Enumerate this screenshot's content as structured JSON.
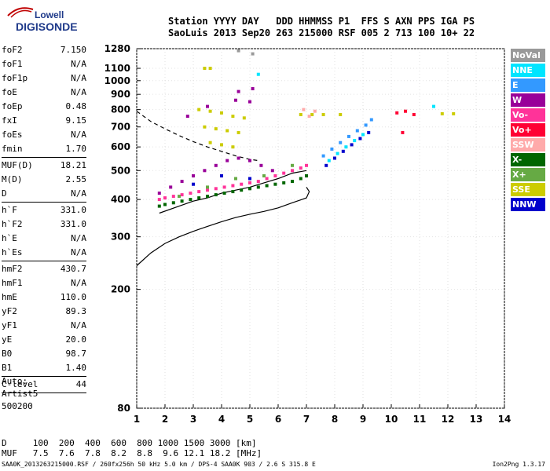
{
  "logo": {
    "line1": "Lowell",
    "line2": "DIGISONDE"
  },
  "header": {
    "line1": "Station YYYY DAY   DDD HHMMSS P1  FFS S AXN PPS IGA PS",
    "line2": "SaoLuis 2013 Sep20 263 215000 RSF 005 2 713 100 10+ 22"
  },
  "params": [
    {
      "label": "foF2",
      "value": "7.150"
    },
    {
      "label": "foF1",
      "value": "N/A"
    },
    {
      "label": "foF1p",
      "value": "N/A"
    },
    {
      "label": "foE",
      "value": "N/A"
    },
    {
      "label": "foEp",
      "value": "0.48"
    },
    {
      "label": "fxI",
      "value": "9.15"
    },
    {
      "label": "foEs",
      "value": "N/A"
    },
    {
      "label": "fmin",
      "value": "1.70"
    },
    {
      "sep": true
    },
    {
      "label": "MUF(D)",
      "value": "18.21"
    },
    {
      "label": "M(D)",
      "value": "2.55"
    },
    {
      "label": "D",
      "value": "N/A"
    },
    {
      "sep": true
    },
    {
      "label": "h`F",
      "value": "331.0"
    },
    {
      "label": "h`F2",
      "value": "331.0"
    },
    {
      "label": "h`E",
      "value": "N/A"
    },
    {
      "label": "h`Es",
      "value": "N/A"
    },
    {
      "sep": true
    },
    {
      "label": "hmF2",
      "value": "430.7"
    },
    {
      "label": "hmF1",
      "value": "N/A"
    },
    {
      "label": "hmE",
      "value": "110.0"
    },
    {
      "label": "yF2",
      "value": "89.3"
    },
    {
      "label": "yF1",
      "value": "N/A"
    },
    {
      "label": "yE",
      "value": "20.0"
    },
    {
      "label": "B0",
      "value": "98.7"
    },
    {
      "label": "B1",
      "value": "1.40"
    },
    {
      "sep": true
    },
    {
      "label": "C-level",
      "value": "44"
    },
    {
      "sep": true
    }
  ],
  "auto": {
    "line1": "Auto:",
    "line2": "Artist5",
    "line3": "500200"
  },
  "legend": [
    {
      "label": "NoVal",
      "color": "#999999"
    },
    {
      "label": "NNE",
      "color": "#00e5ff"
    },
    {
      "label": "E",
      "color": "#3399ff"
    },
    {
      "label": "W",
      "color": "#990099"
    },
    {
      "label": "Vo-",
      "color": "#ff3399"
    },
    {
      "label": "Vo+",
      "color": "#ff0033"
    },
    {
      "label": "SSW",
      "color": "#ffaaaa"
    },
    {
      "label": "X-",
      "color": "#006600"
    },
    {
      "label": "X+",
      "color": "#66aa44"
    },
    {
      "label": "SSE",
      "color": "#cccc00"
    },
    {
      "label": "NNW",
      "color": "#0000cc"
    }
  ],
  "muf_table": {
    "line1": "D     100  200  400  600  800 1000 1500 3000 [km]",
    "line2": "MUF   7.5  7.6  7.8  8.2  8.8  9.6 12.1 18.2 [MHz]"
  },
  "footer": {
    "left": "SAA0K_2013263215000.RSF / 260fx256h 50 kHz 5.0 km / DPS-4 SAA0K 903 / 2.6 S 315.8 E",
    "right": "Ion2Png 1.3.17"
  },
  "chart_data": {
    "type": "scatter",
    "title": "",
    "xlabel": "",
    "ylabel": "",
    "xlim": [
      1,
      14
    ],
    "ylim": [
      80,
      1280
    ],
    "yscale": "log",
    "grid": true,
    "x_ticks": [
      1,
      2,
      3,
      4,
      5,
      6,
      7,
      8,
      9,
      10,
      11,
      12,
      13,
      14
    ],
    "y_ticks": [
      80,
      200,
      300,
      400,
      500,
      600,
      700,
      800,
      900,
      1000,
      1100,
      1280
    ],
    "legend_position": "right",
    "series": [
      {
        "name": "X-",
        "color": "#006600",
        "points": [
          [
            1.8,
            380
          ],
          [
            2.0,
            385
          ],
          [
            2.3,
            390
          ],
          [
            2.6,
            395
          ],
          [
            2.9,
            400
          ],
          [
            3.2,
            405
          ],
          [
            3.5,
            410
          ],
          [
            3.8,
            415
          ],
          [
            4.1,
            420
          ],
          [
            4.4,
            425
          ],
          [
            4.7,
            430
          ],
          [
            5.0,
            435
          ],
          [
            5.3,
            440
          ],
          [
            5.6,
            445
          ],
          [
            5.9,
            450
          ],
          [
            6.2,
            455
          ],
          [
            6.5,
            460
          ],
          [
            6.8,
            470
          ],
          [
            7.0,
            480
          ]
        ]
      },
      {
        "name": "Vo-",
        "color": "#ff3399",
        "points": [
          [
            1.8,
            400
          ],
          [
            2.0,
            405
          ],
          [
            2.3,
            410
          ],
          [
            2.6,
            415
          ],
          [
            2.9,
            420
          ],
          [
            3.2,
            425
          ],
          [
            3.5,
            430
          ],
          [
            3.8,
            435
          ],
          [
            4.1,
            440
          ],
          [
            4.4,
            445
          ],
          [
            4.7,
            450
          ],
          [
            5.0,
            455
          ],
          [
            5.3,
            460
          ],
          [
            5.6,
            470
          ],
          [
            5.9,
            480
          ],
          [
            6.2,
            490
          ],
          [
            6.5,
            500
          ],
          [
            6.8,
            510
          ],
          [
            7.0,
            520
          ]
        ]
      },
      {
        "name": "W",
        "color": "#990099",
        "points": [
          [
            1.8,
            420
          ],
          [
            2.2,
            440
          ],
          [
            2.6,
            460
          ],
          [
            3.0,
            480
          ],
          [
            3.4,
            500
          ],
          [
            3.8,
            520
          ],
          [
            4.2,
            540
          ],
          [
            4.6,
            550
          ],
          [
            5.0,
            540
          ],
          [
            5.4,
            520
          ],
          [
            5.8,
            500
          ],
          [
            2.8,
            760
          ],
          [
            3.5,
            820
          ],
          [
            4.5,
            860
          ],
          [
            5.0,
            850
          ],
          [
            5.1,
            940
          ],
          [
            4.6,
            920
          ]
        ]
      },
      {
        "name": "SSE",
        "color": "#cccc00",
        "points": [
          [
            3.2,
            800
          ],
          [
            3.6,
            790
          ],
          [
            4.0,
            780
          ],
          [
            4.4,
            760
          ],
          [
            4.8,
            750
          ],
          [
            3.4,
            700
          ],
          [
            3.8,
            690
          ],
          [
            4.2,
            680
          ],
          [
            4.6,
            670
          ],
          [
            3.6,
            620
          ],
          [
            4.0,
            610
          ],
          [
            4.4,
            600
          ],
          [
            3.4,
            1100
          ],
          [
            3.6,
            1100
          ],
          [
            6.8,
            770
          ],
          [
            7.2,
            770
          ],
          [
            7.6,
            770
          ],
          [
            8.2,
            770
          ],
          [
            11.8,
            775
          ],
          [
            12.2,
            775
          ]
        ]
      },
      {
        "name": "E",
        "color": "#3399ff",
        "points": [
          [
            7.6,
            560
          ],
          [
            7.9,
            590
          ],
          [
            8.2,
            620
          ],
          [
            8.5,
            650
          ],
          [
            8.8,
            680
          ],
          [
            9.1,
            710
          ],
          [
            9.3,
            740
          ]
        ]
      },
      {
        "name": "NNW",
        "color": "#0000cc",
        "points": [
          [
            7.7,
            520
          ],
          [
            8.0,
            550
          ],
          [
            8.3,
            580
          ],
          [
            8.6,
            610
          ],
          [
            8.9,
            640
          ],
          [
            9.2,
            670
          ],
          [
            3.0,
            450
          ],
          [
            4.0,
            480
          ],
          [
            5.0,
            470
          ]
        ]
      },
      {
        "name": "NNE",
        "color": "#00e5ff",
        "points": [
          [
            7.8,
            540
          ],
          [
            8.1,
            570
          ],
          [
            8.4,
            600
          ],
          [
            8.7,
            630
          ],
          [
            9.0,
            660
          ],
          [
            5.3,
            1050
          ],
          [
            11.5,
            820
          ]
        ]
      },
      {
        "name": "Vo+",
        "color": "#ff0033",
        "points": [
          [
            10.2,
            780
          ],
          [
            10.5,
            790
          ],
          [
            10.8,
            770
          ],
          [
            10.4,
            670
          ]
        ]
      },
      {
        "name": "SSW",
        "color": "#ffaaaa",
        "points": [
          [
            6.9,
            800
          ],
          [
            7.1,
            760
          ],
          [
            7.3,
            790
          ]
        ]
      },
      {
        "name": "X+",
        "color": "#66aa44",
        "points": [
          [
            2.5,
            410
          ],
          [
            3.5,
            440
          ],
          [
            4.5,
            470
          ],
          [
            5.5,
            480
          ],
          [
            6.5,
            520
          ]
        ]
      },
      {
        "name": "NoVal",
        "color": "#999999",
        "points": [
          [
            5.1,
            1230
          ],
          [
            4.6,
            1260
          ]
        ]
      }
    ],
    "curves": [
      {
        "style": "solid",
        "points": [
          [
            1.0,
            240
          ],
          [
            1.5,
            265
          ],
          [
            2.0,
            285
          ],
          [
            2.5,
            300
          ],
          [
            3.0,
            313
          ],
          [
            3.5,
            325
          ],
          [
            4.0,
            337
          ],
          [
            4.5,
            348
          ],
          [
            5.0,
            357
          ],
          [
            5.5,
            365
          ],
          [
            6.0,
            375
          ],
          [
            6.5,
            390
          ],
          [
            7.0,
            405
          ],
          [
            7.1,
            425
          ],
          [
            7.0,
            440
          ]
        ]
      },
      {
        "style": "dashed",
        "points": [
          [
            1.0,
            790
          ],
          [
            1.5,
            730
          ],
          [
            2.0,
            690
          ],
          [
            2.5,
            655
          ],
          [
            3.0,
            625
          ],
          [
            3.5,
            600
          ],
          [
            4.0,
            580
          ],
          [
            4.5,
            560
          ],
          [
            5.0,
            545
          ],
          [
            5.3,
            540
          ]
        ]
      },
      {
        "style": "solid",
        "points": [
          [
            1.8,
            360
          ],
          [
            2.5,
            380
          ],
          [
            3.0,
            395
          ],
          [
            3.5,
            405
          ],
          [
            4.0,
            420
          ],
          [
            4.5,
            430
          ],
          [
            5.0,
            440
          ],
          [
            5.5,
            455
          ],
          [
            6.0,
            470
          ],
          [
            6.5,
            490
          ],
          [
            7.0,
            500
          ]
        ]
      }
    ]
  }
}
